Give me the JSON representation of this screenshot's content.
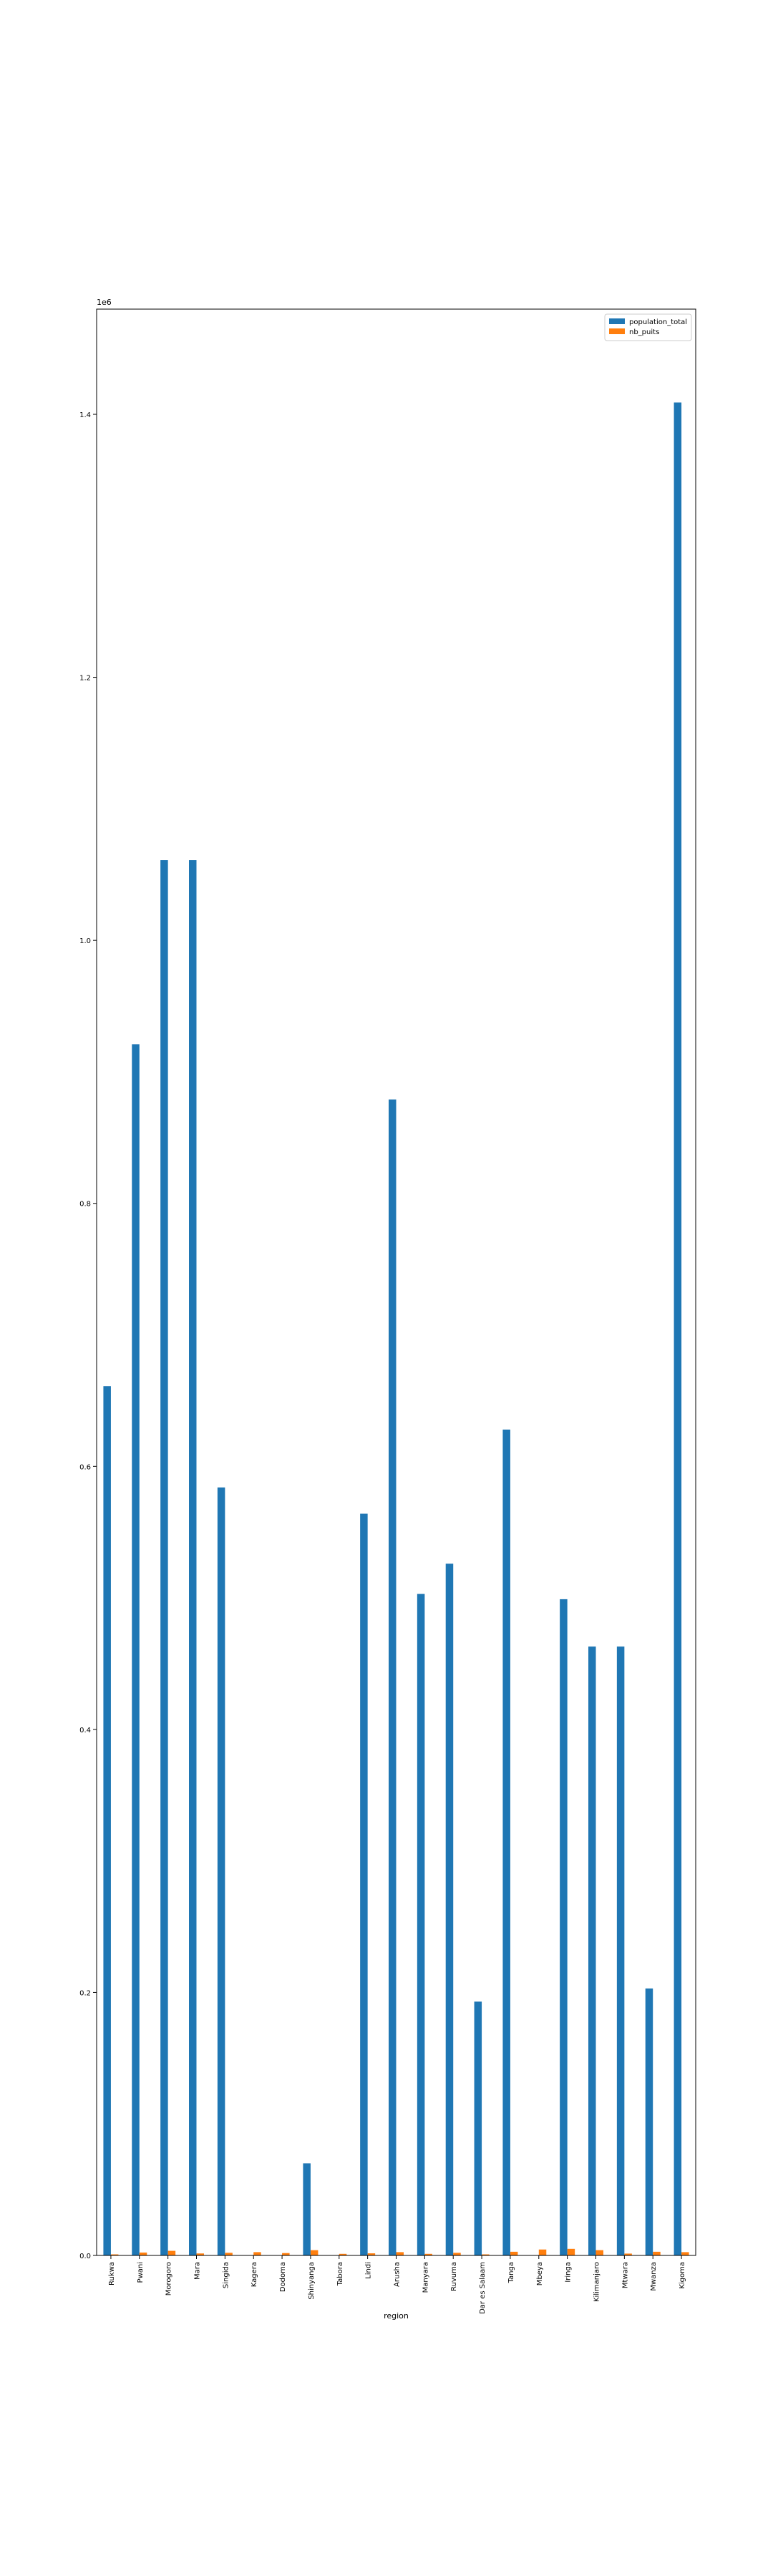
{
  "chart_data": {
    "type": "bar",
    "title": "",
    "xlabel": "region",
    "ylabel": "",
    "y_offset_label": "1e6",
    "ylim": [
      0,
      1.48
    ],
    "yticks": [
      0.0,
      0.2,
      0.4,
      0.6,
      0.8,
      1.0,
      1.2,
      1.4
    ],
    "ytick_labels": [
      "0.0",
      "0.2",
      "0.4",
      "0.6",
      "0.8",
      "1.0",
      "1.2",
      "1.4"
    ],
    "grid": false,
    "legend_placement": "top-right",
    "categories": [
      "Rukwa",
      "Pwani",
      "Morogoro",
      "Mara",
      "Singida",
      "Kagera",
      "Dodoma",
      "Shinyanga",
      "Tabora",
      "Lindi",
      "Arusha",
      "Manyara",
      "Ruvuma",
      "Dar es Salaam",
      "Tanga",
      "Mbeya",
      "Iringa",
      "Kilimanjaro",
      "Mtwara",
      "Mwanza",
      "Kigoma"
    ],
    "series": [
      {
        "name": "population_total",
        "color": "#1f77b4",
        "values": [
          0.661,
          0.921,
          1.061,
          1.061,
          0.584,
          0.0,
          0.0,
          0.07,
          0.0,
          0.564,
          0.879,
          0.503,
          0.526,
          0.193,
          0.628,
          0.0,
          0.499,
          0.463,
          0.463,
          0.203,
          1.409
        ]
      },
      {
        "name": "nb_puits",
        "color": "#ff7f0e",
        "values": [
          0.0008,
          0.0022,
          0.0035,
          0.0015,
          0.002,
          0.0025,
          0.0018,
          0.004,
          0.0012,
          0.0016,
          0.0025,
          0.0012,
          0.002,
          0.0008,
          0.0028,
          0.0045,
          0.005,
          0.004,
          0.0014,
          0.0028,
          0.0025
        ]
      }
    ]
  }
}
